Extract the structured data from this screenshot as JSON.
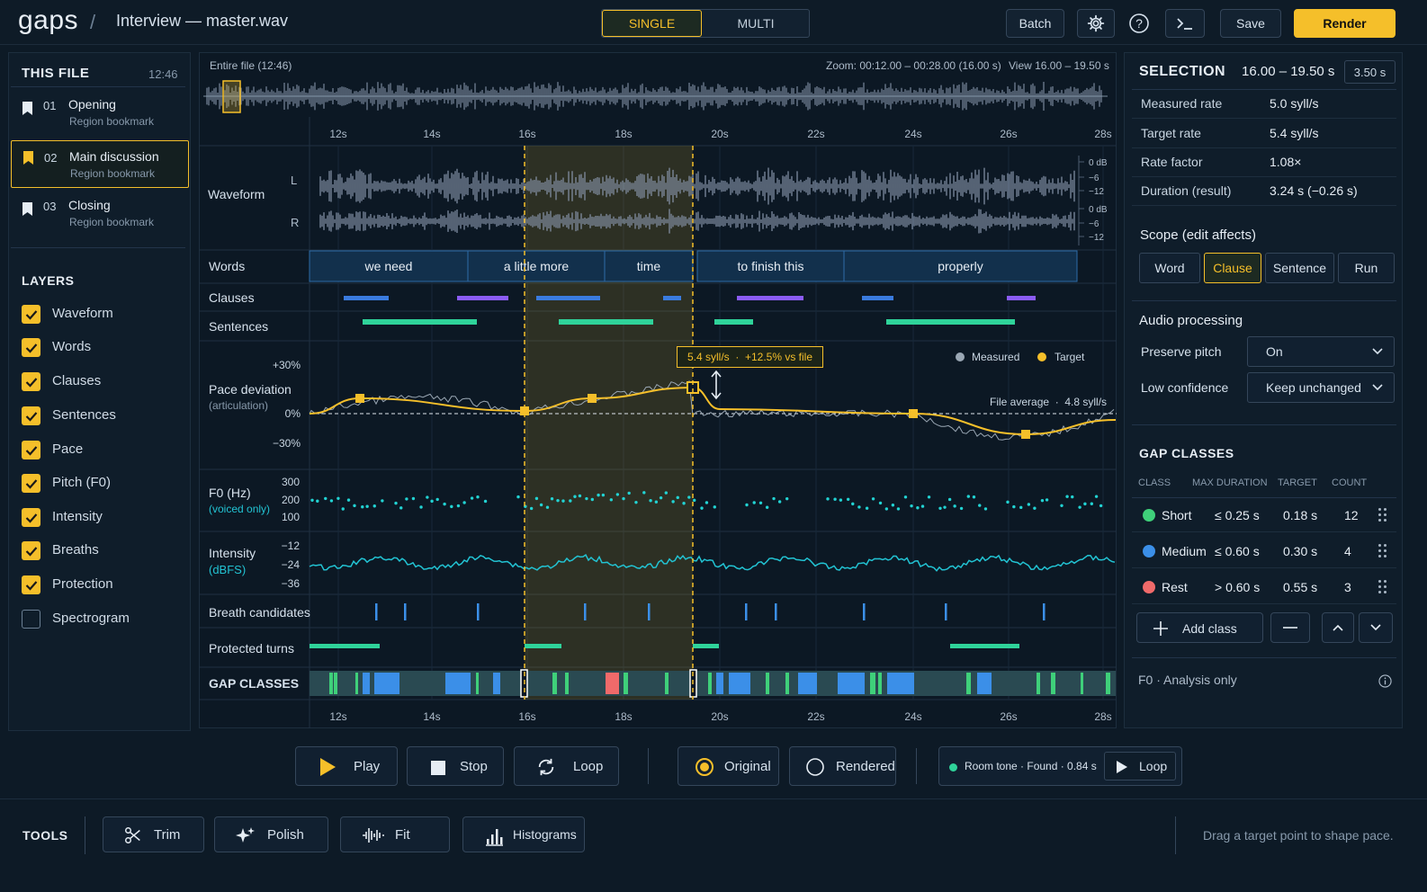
{
  "app": {
    "logo": "gaps",
    "separator": "/",
    "file_title": "Interview — master.wav"
  },
  "mode_tabs": [
    {
      "label": "SINGLE",
      "active": true
    },
    {
      "label": "MULTI",
      "active": false
    }
  ],
  "header_actions": {
    "batch": "Batch",
    "save": "Save",
    "render": "Render",
    "settings_icon": "gear-icon",
    "help_icon": "help-icon",
    "console_icon": "terminal-icon"
  },
  "this_file": {
    "title": "THIS FILE",
    "duration": "12:46",
    "bookmarks": [
      {
        "num": "01",
        "name": "Opening",
        "type": "Region bookmark",
        "active": false
      },
      {
        "num": "02",
        "name": "Main discussion",
        "type": "Region bookmark",
        "active": true
      },
      {
        "num": "03",
        "name": "Closing",
        "type": "Region bookmark",
        "active": false
      }
    ]
  },
  "layers": {
    "title": "LAYERS",
    "items": [
      {
        "label": "Waveform",
        "checked": true
      },
      {
        "label": "Words",
        "checked": true
      },
      {
        "label": "Clauses",
        "checked": true
      },
      {
        "label": "Sentences",
        "checked": true
      },
      {
        "label": "Pace",
        "checked": true
      },
      {
        "label": "Pitch (F0)",
        "checked": true
      },
      {
        "label": "Intensity",
        "checked": true
      },
      {
        "label": "Breaths",
        "checked": true
      },
      {
        "label": "Protection",
        "checked": true
      },
      {
        "label": "Spectrogram",
        "checked": false
      }
    ]
  },
  "overview": {
    "label": "Entire file (12:46)",
    "zoom": "Zoom: 00:12.00 – 00:28.00 (16.00 s)",
    "view": "View 16.00 – 19.50 s"
  },
  "timeline": {
    "ticks": [
      "12s",
      "14s",
      "16s",
      "18s",
      "20s",
      "22s",
      "24s",
      "26s",
      "28s"
    ]
  },
  "tracks": {
    "waveform": "Waveform",
    "channel_l": "L",
    "channel_r": "R",
    "db_l": [
      "0 dB",
      "−6",
      "−12"
    ],
    "db_r": [
      "0 dB",
      "−6",
      "−12"
    ],
    "words": "Words",
    "clauses": "Clauses",
    "sentences": "Sentences",
    "pace": "Pace deviation",
    "pace_sub": "(articulation)",
    "pace_ticks": [
      "+30%",
      "0%",
      "−30%"
    ],
    "f0": "F0 (Hz)",
    "f0_sub": "(voiced only)",
    "f0_ticks": [
      "300",
      "200",
      "100"
    ],
    "intensity": "Intensity",
    "intensity_sub": "(dBFS)",
    "intensity_ticks": [
      "−12",
      "−24",
      "−36"
    ],
    "breath": "Breath candidates",
    "protected": "Protected turns",
    "gapclasses": "GAP CLASSES"
  },
  "words": [
    "we need",
    "a little more",
    "time",
    "to finish this",
    "properly"
  ],
  "pace_chart": {
    "tooltip": "5.4 syll/s  ·  +12.5% vs file",
    "legend_measured": "Measured",
    "legend_target": "Target",
    "file_average": "File average  ·  4.8 syll/s",
    "colors": {
      "target": "#f5bf2a",
      "measured": "#9aa7b4",
      "f0": "#22d3d3",
      "sentence": "#2fd39a",
      "clause_blue": "#3a7bde",
      "clause_purple": "#8b5cf6"
    }
  },
  "transport": {
    "play": "Play",
    "stop": "Stop",
    "loop": "Loop",
    "original": "Original",
    "rendered": "Rendered",
    "room_tone": "Room tone · Found · 0.84 s",
    "room_loop": "Loop"
  },
  "tools": {
    "title": "TOOLS",
    "items": [
      "Trim",
      "Polish",
      "Fit",
      "Histograms"
    ],
    "hint": "Drag a target point to shape pace."
  },
  "selection": {
    "title": "SELECTION",
    "range": "16.00 – 19.50 s",
    "length": "3.50 s",
    "rows": [
      {
        "k": "Measured rate",
        "v": "5.0 syll/s"
      },
      {
        "k": "Target rate",
        "v": "5.4 syll/s"
      },
      {
        "k": "Rate factor",
        "v": "1.08×"
      },
      {
        "k": "Duration (result)",
        "v": "3.24 s (−0.26 s)"
      }
    ]
  },
  "scope": {
    "title": "Scope (edit affects)",
    "options": [
      "Word",
      "Clause",
      "Sentence",
      "Run"
    ],
    "active": "Clause"
  },
  "audio_processing": {
    "title": "Audio processing",
    "preserve_pitch_label": "Preserve pitch",
    "preserve_pitch_value": "On",
    "low_conf_label": "Low confidence",
    "low_conf_value": "Keep unchanged"
  },
  "gap_classes": {
    "title": "GAP CLASSES",
    "headers": [
      "CLASS",
      "MAX DURATION",
      "TARGET",
      "COUNT"
    ],
    "rows": [
      {
        "name": "Short",
        "max": "≤ 0.25 s",
        "target": "0.18 s",
        "count": "12",
        "color": "#3fd07a"
      },
      {
        "name": "Medium",
        "max": "≤ 0.60 s",
        "target": "0.30 s",
        "count": "4",
        "color": "#3b8fe8"
      },
      {
        "name": "Rest",
        "max": "> 0.60 s",
        "target": "0.55 s",
        "count": "3",
        "color": "#f06a6a"
      }
    ],
    "add_class": "Add class"
  },
  "f0_note": "F0 · Analysis only"
}
